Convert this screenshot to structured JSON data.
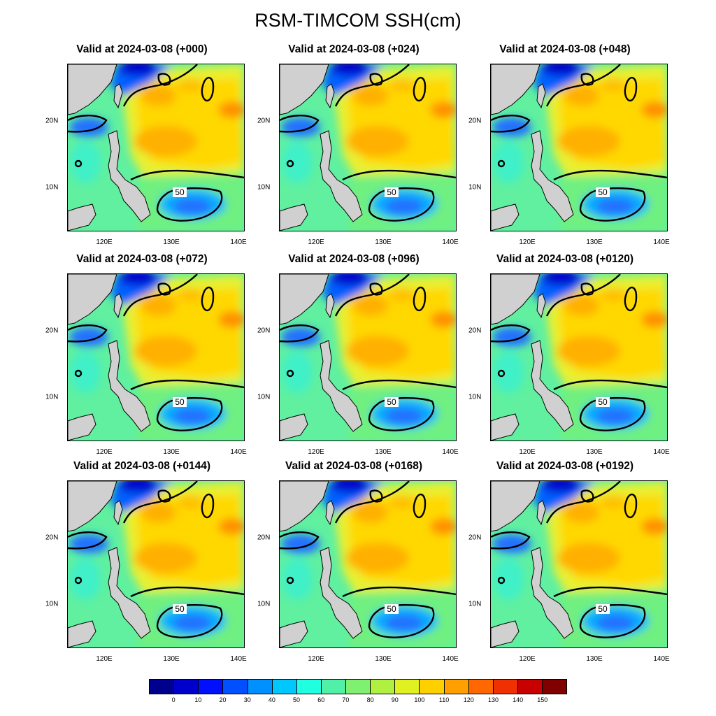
{
  "title": "RSM-TIMCOM SSH(cm)",
  "panels": [
    {
      "title": "Valid at 2024-03-08 (+000)"
    },
    {
      "title": "Valid at 2024-03-08 (+024)"
    },
    {
      "title": "Valid at 2024-03-08 (+048)"
    },
    {
      "title": "Valid at 2024-03-08 (+072)"
    },
    {
      "title": "Valid at 2024-03-08 (+096)"
    },
    {
      "title": "Valid at 2024-03-08 (+0120)"
    },
    {
      "title": "Valid at 2024-03-08 (+0144)"
    },
    {
      "title": "Valid at 2024-03-08 (+0168)"
    },
    {
      "title": "Valid at 2024-03-08 (+0192)"
    }
  ],
  "x_ticks": [
    "120E",
    "130E",
    "140E"
  ],
  "y_ticks": [
    "20N",
    "10N"
  ],
  "contour_label": "50",
  "colorbar": {
    "colors": [
      "#00008f",
      "#0000cc",
      "#0010ff",
      "#0050ff",
      "#0090ff",
      "#00c8ff",
      "#20ffe0",
      "#50f0a8",
      "#80f070",
      "#b0f040",
      "#e0f020",
      "#ffd000",
      "#ffa000",
      "#ff6800",
      "#f03000",
      "#c80000",
      "#800000"
    ],
    "labels": [
      "0",
      "10",
      "20",
      "30",
      "40",
      "50",
      "60",
      "70",
      "80",
      "90",
      "100",
      "110",
      "120",
      "130",
      "140",
      "150"
    ]
  },
  "colors": {
    "land": "#d0d0d0",
    "background": "#60f0a0",
    "contour": "#000000"
  }
}
